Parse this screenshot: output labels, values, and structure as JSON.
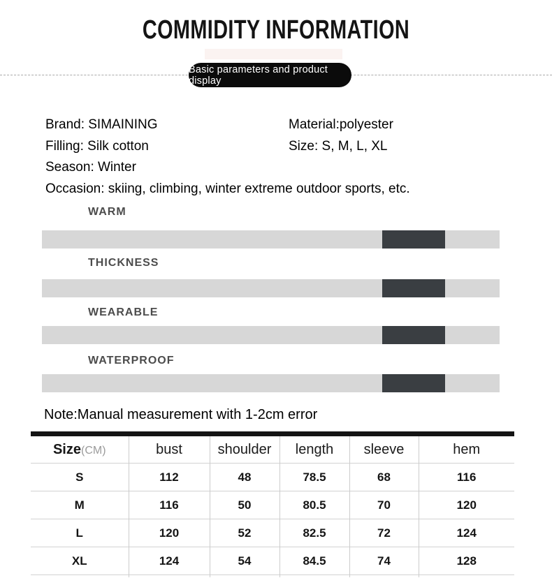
{
  "page": {
    "title": "COMMIDITY INFORMATION",
    "badge": "Basic parameters and product display"
  },
  "details": {
    "brand": "Brand: SIMAINING",
    "material": "Material:polyester",
    "filling": "Filling: Silk cotton",
    "size": "Size: S, M, L, XL",
    "season": "Season: Winter",
    "occasion": "Occasion: skiing, climbing, winter extreme outdoor sports, etc."
  },
  "attributes": {
    "track_color": "#d7d7d7",
    "indicator_color": "#3a3e42",
    "items": [
      {
        "label": "WARM",
        "level_start_pct": 74.4,
        "level_width_pct": 13.7
      },
      {
        "label": "THICKNESS",
        "level_start_pct": 74.4,
        "level_width_pct": 13.7
      },
      {
        "label": "WEARABLE",
        "level_start_pct": 74.4,
        "level_width_pct": 13.7
      },
      {
        "label": "WATERPROOF",
        "level_start_pct": 74.4,
        "level_width_pct": 13.7
      }
    ]
  },
  "note": "Note:Manual measurement with 1-2cm error",
  "size_table": {
    "headers": {
      "size": "Size",
      "unit": "(CM)",
      "cols": [
        "bust",
        "shoulder",
        "length",
        "sleeve",
        "hem"
      ]
    },
    "rows": [
      {
        "size": "S",
        "values": [
          "112",
          "48",
          "78.5",
          "68",
          "116"
        ]
      },
      {
        "size": "M",
        "values": [
          "116",
          "50",
          "80.5",
          "70",
          "120"
        ]
      },
      {
        "size": "L",
        "values": [
          "120",
          "52",
          "82.5",
          "72",
          "124"
        ]
      },
      {
        "size": "XL",
        "values": [
          "124",
          "54",
          "84.5",
          "74",
          "128"
        ]
      }
    ]
  }
}
